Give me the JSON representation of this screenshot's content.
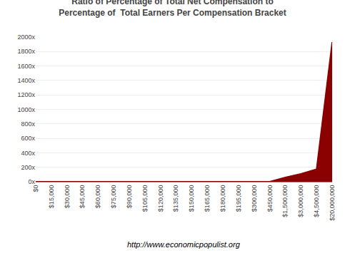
{
  "chart_data": {
    "type": "area",
    "title": "Ratio of Percentage of Total Net Compensation to\nPercentage of  Total Earners Per Compensation Bracket",
    "subtitle": "http://www.economicpopulist.org",
    "categories": [
      "$0",
      "$15,000",
      "$30,000",
      "$45,000",
      "$60,000",
      "$75,000",
      "$90,000",
      "$105,000",
      "$120,000",
      "$135,000",
      "$150,000",
      "$165,000",
      "$180,000",
      "$195,000",
      "$300,000",
      "$450,000",
      "$1,500,000",
      "$3,000,000",
      "$4,500,000",
      "$20,000,000"
    ],
    "values": [
      0.05,
      0.05,
      0.05,
      0.08,
      0.08,
      0.08,
      0.08,
      0.08,
      0.08,
      0.08,
      0.08,
      0.08,
      0.08,
      0.08,
      0.5,
      2.0,
      60,
      110,
      175,
      1930
    ],
    "color": "#8B0000",
    "ylim": [
      0,
      2000
    ],
    "yticks": [
      {
        "value": 0,
        "label": "0x"
      },
      {
        "value": 200,
        "label": "200x"
      },
      {
        "value": 400,
        "label": "400x"
      },
      {
        "value": 600,
        "label": "600x"
      },
      {
        "value": 800,
        "label": "800x"
      },
      {
        "value": 1000,
        "label": "1000x"
      },
      {
        "value": 1200,
        "label": "1200x"
      },
      {
        "value": 1400,
        "label": "1400x"
      },
      {
        "value": 1600,
        "label": "1600x"
      },
      {
        "value": 1800,
        "label": "1800x"
      },
      {
        "value": 2000,
        "label": "2000x"
      }
    ],
    "grid": true
  }
}
